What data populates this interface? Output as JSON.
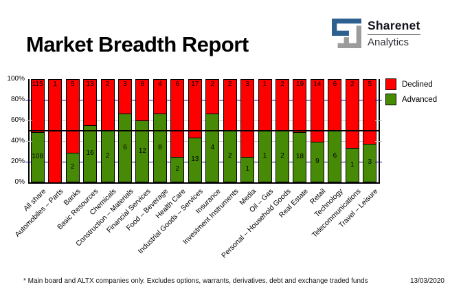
{
  "title": "Market Breadth Report",
  "logo": {
    "name": "Sharenet",
    "sub": "Analytics"
  },
  "legend_title": "",
  "footer": {
    "disclaimer": "* Main board and ALTX companies only. Excludes options, warrants, derivatives, debt and exchange traded funds",
    "date": "13/03/2020"
  },
  "colors": {
    "declined": "#FF0000",
    "advanced": "#478A06",
    "grid_major": "#00007E",
    "grid_minor": "#C6C6C6",
    "midline": "#000000",
    "axis": "#000000",
    "logo_blue": "#2D608F",
    "logo_gray": "#9C9C9C"
  },
  "chart_data": {
    "type": "bar",
    "stacked": true,
    "stack_mode": "percent",
    "title": "Market Breadth Report",
    "xlabel": "",
    "ylabel": "",
    "ylim": [
      0,
      100
    ],
    "yticks": [
      "0%",
      "20%",
      "40%",
      "60%",
      "80%",
      "100%"
    ],
    "grid": "horizontal, gridlines at 20/40/60/80%, solid black reference line at 50%",
    "legend_position": "top-right",
    "legend": [
      {
        "label": "Declined",
        "series": "Declined"
      },
      {
        "label": "Advanced",
        "series": "Advanced"
      }
    ],
    "reference_line_pct": 50,
    "categories": [
      "All share",
      "Automobiles – Parts",
      "Banks",
      "Basic Resources",
      "Chemicals",
      "Construction – Materials",
      "Financial Services",
      "Food – Beverage",
      "Health Care",
      "Industrial Goods – Services",
      "Insurance",
      "Investment Instruments",
      "Media",
      "Oil – Gas",
      "Personal – Household Goods",
      "Real Estate",
      "Retail",
      "Technology",
      "Telecommunications",
      "Travel – Leisure"
    ],
    "series": [
      {
        "name": "Declined",
        "values": [
          115,
          1,
          5,
          13,
          2,
          3,
          8,
          4,
          6,
          17,
          2,
          2,
          3,
          1,
          2,
          19,
          14,
          6,
          2,
          5
        ]
      },
      {
        "name": "Advanced",
        "values": [
          108,
          0,
          2,
          16,
          2,
          6,
          12,
          8,
          2,
          13,
          4,
          2,
          1,
          1,
          2,
          18,
          9,
          6,
          1,
          3
        ]
      }
    ]
  }
}
